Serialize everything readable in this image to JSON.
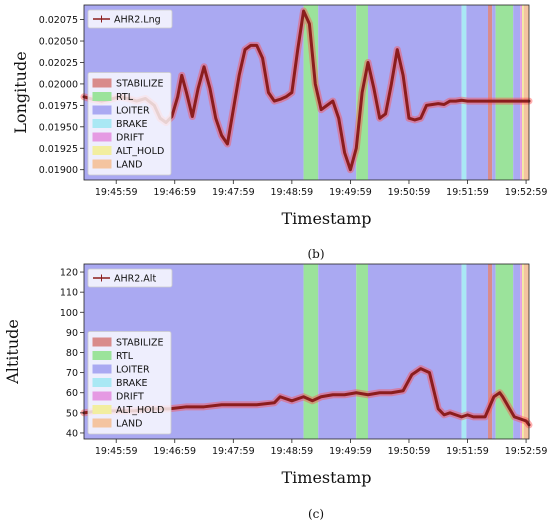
{
  "mode_colors": {
    "STABILIZE": "#d98b8b",
    "RTL": "#9be39b",
    "LOITER": "#aaa9f2",
    "BRAKE": "#a9e8f4",
    "DRIFT": "#e59ae3",
    "ALT_HOLD": "#f2eea0",
    "LAND": "#f4c4a0"
  },
  "line_color": "#8b1d1d",
  "glow_color": "#ff4d4d",
  "chart_data": [
    {
      "type": "line",
      "caption": "(b)",
      "xlabel": "Timestamp",
      "ylabel": "Longitude",
      "x_ticks": [
        "19:45:59",
        "19:46:59",
        "19:47:59",
        "19:48:59",
        "19:49:59",
        "19:50:59",
        "19:51:59",
        "19:52:59"
      ],
      "y_ticks": [
        "0.01900",
        "0.01925",
        "0.01950",
        "0.01975",
        "0.02000",
        "0.02025",
        "0.02050",
        "0.02075"
      ],
      "ylim": [
        0.01888,
        0.02092
      ],
      "xlim_minutes": [
        -0.55,
        7.05
      ],
      "series": [
        {
          "name": "AHR2.Lng",
          "x": [
            -0.55,
            -0.4,
            -0.25,
            -0.1,
            0.05,
            0.2,
            0.35,
            0.5,
            0.65,
            0.75,
            0.85,
            0.95,
            1.05,
            1.12,
            1.2,
            1.3,
            1.4,
            1.5,
            1.6,
            1.7,
            1.8,
            1.9,
            2.0,
            2.1,
            2.2,
            2.3,
            2.4,
            2.5,
            2.6,
            2.7,
            2.8,
            2.9,
            3.0,
            3.1,
            3.2,
            3.3,
            3.4,
            3.5,
            3.6,
            3.7,
            3.8,
            3.9,
            4.0,
            4.1,
            4.2,
            4.3,
            4.4,
            4.5,
            4.6,
            4.7,
            4.8,
            4.9,
            5.0,
            5.1,
            5.2,
            5.3,
            5.4,
            5.5,
            5.6,
            5.7,
            5.8,
            5.9,
            6.0,
            6.2,
            6.5,
            6.8,
            7.05
          ],
          "y": [
            0.01985,
            0.01982,
            0.0198,
            0.01982,
            0.01985,
            0.01983,
            0.0198,
            0.01983,
            0.01975,
            0.0196,
            0.01955,
            0.01962,
            0.01985,
            0.0201,
            0.0199,
            0.01962,
            0.01995,
            0.0202,
            0.01995,
            0.0196,
            0.0194,
            0.0193,
            0.0197,
            0.0201,
            0.0204,
            0.02045,
            0.02045,
            0.0203,
            0.0199,
            0.0198,
            0.01982,
            0.01985,
            0.0199,
            0.0204,
            0.02085,
            0.0207,
            0.02,
            0.0197,
            0.01975,
            0.0198,
            0.0196,
            0.0192,
            0.019,
            0.01925,
            0.0199,
            0.02025,
            0.01995,
            0.0196,
            0.01965,
            0.02,
            0.0204,
            0.0201,
            0.0196,
            0.01958,
            0.0196,
            0.01975,
            0.01976,
            0.01977,
            0.01976,
            0.0198,
            0.0198,
            0.01981,
            0.0198,
            0.0198,
            0.0198,
            0.0198,
            0.0198
          ]
        }
      ],
      "modes": [
        {
          "mode": "LOITER",
          "start": -0.55,
          "end": 3.2
        },
        {
          "mode": "RTL",
          "start": 3.2,
          "end": 3.45
        },
        {
          "mode": "LOITER",
          "start": 3.45,
          "end": 4.1
        },
        {
          "mode": "RTL",
          "start": 4.1,
          "end": 4.3
        },
        {
          "mode": "LOITER",
          "start": 4.3,
          "end": 5.9
        },
        {
          "mode": "BRAKE",
          "start": 5.9,
          "end": 5.98
        },
        {
          "mode": "LOITER",
          "start": 5.98,
          "end": 6.35
        },
        {
          "mode": "STABILIZE",
          "start": 6.35,
          "end": 6.42
        },
        {
          "mode": "LOITER",
          "start": 6.42,
          "end": 6.48
        },
        {
          "mode": "RTL",
          "start": 6.48,
          "end": 6.78
        },
        {
          "mode": "LOITER",
          "start": 6.78,
          "end": 6.9
        },
        {
          "mode": "DRIFT",
          "start": 6.9,
          "end": 6.93
        },
        {
          "mode": "ALT_HOLD",
          "start": 6.93,
          "end": 6.96
        },
        {
          "mode": "LAND",
          "start": 6.96,
          "end": 7.05
        }
      ],
      "legend_placement": "left",
      "series_legend_placement": "top-left"
    },
    {
      "type": "line",
      "caption": "(c)",
      "xlabel": "Timestamp",
      "ylabel": "Altitude",
      "x_ticks": [
        "19:45:59",
        "19:46:59",
        "19:47:59",
        "19:48:59",
        "19:49:59",
        "19:50:59",
        "19:51:59",
        "19:52:59"
      ],
      "y_ticks": [
        "40",
        "50",
        "60",
        "70",
        "80",
        "90",
        "100",
        "110",
        "120"
      ],
      "ylim": [
        37,
        124
      ],
      "xlim_minutes": [
        -0.55,
        7.05
      ],
      "series": [
        {
          "name": "AHR2.Alt",
          "x": [
            -0.55,
            -0.3,
            0.0,
            0.3,
            0.6,
            0.9,
            1.2,
            1.5,
            1.8,
            2.1,
            2.4,
            2.7,
            2.8,
            3.0,
            3.2,
            3.35,
            3.5,
            3.7,
            3.9,
            4.1,
            4.3,
            4.5,
            4.7,
            4.9,
            5.05,
            5.2,
            5.35,
            5.5,
            5.6,
            5.7,
            5.8,
            5.9,
            6.0,
            6.1,
            6.3,
            6.45,
            6.55,
            6.6,
            6.7,
            6.8,
            6.9,
            7.0,
            7.05
          ],
          "y": [
            50,
            51,
            51,
            51,
            52,
            52,
            53,
            53,
            54,
            54,
            54,
            55,
            58,
            56,
            58,
            56,
            58,
            59,
            59,
            60,
            59,
            60,
            60,
            61,
            69,
            72,
            70,
            52,
            49,
            50,
            49,
            48,
            49,
            48,
            48,
            58,
            60,
            58,
            53,
            48,
            47,
            46,
            44
          ]
        }
      ],
      "modes": [
        {
          "mode": "LOITER",
          "start": -0.55,
          "end": 3.2
        },
        {
          "mode": "RTL",
          "start": 3.2,
          "end": 3.45
        },
        {
          "mode": "LOITER",
          "start": 3.45,
          "end": 4.1
        },
        {
          "mode": "RTL",
          "start": 4.1,
          "end": 4.3
        },
        {
          "mode": "LOITER",
          "start": 4.3,
          "end": 5.9
        },
        {
          "mode": "BRAKE",
          "start": 5.9,
          "end": 5.98
        },
        {
          "mode": "LOITER",
          "start": 5.98,
          "end": 6.35
        },
        {
          "mode": "STABILIZE",
          "start": 6.35,
          "end": 6.42
        },
        {
          "mode": "LOITER",
          "start": 6.42,
          "end": 6.48
        },
        {
          "mode": "RTL",
          "start": 6.48,
          "end": 6.78
        },
        {
          "mode": "LOITER",
          "start": 6.78,
          "end": 6.9
        },
        {
          "mode": "DRIFT",
          "start": 6.9,
          "end": 6.93
        },
        {
          "mode": "ALT_HOLD",
          "start": 6.93,
          "end": 6.96
        },
        {
          "mode": "LAND",
          "start": 6.96,
          "end": 7.05
        }
      ],
      "legend_placement": "left",
      "series_legend_placement": "top-left"
    }
  ],
  "legend_modes": [
    "STABILIZE",
    "RTL",
    "LOITER",
    "BRAKE",
    "DRIFT",
    "ALT_HOLD",
    "LAND"
  ]
}
